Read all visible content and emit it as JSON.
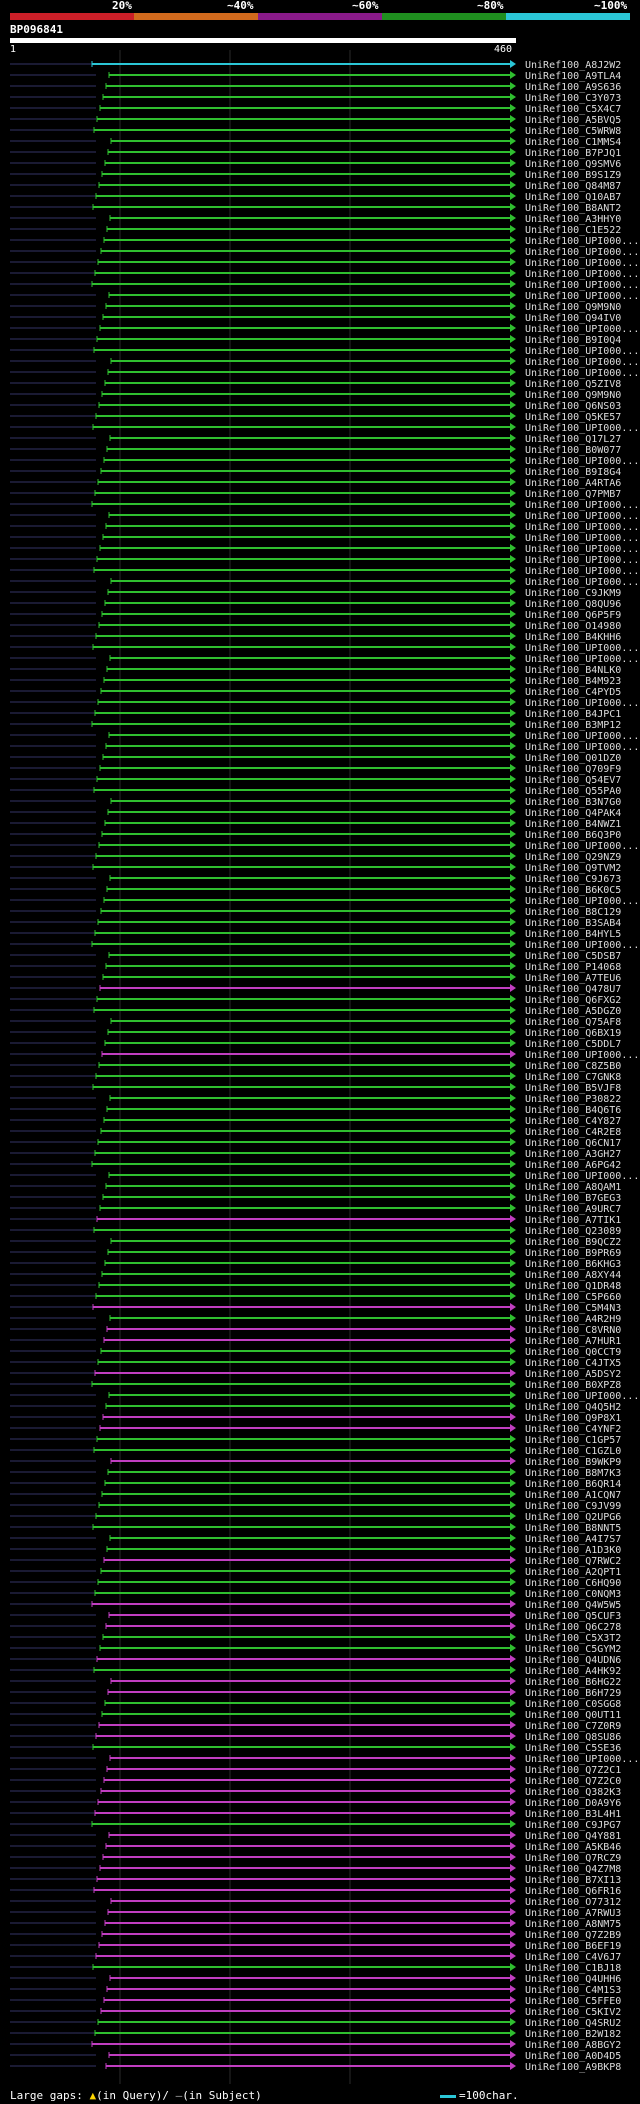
{
  "scale_ticks": [
    "20%",
    "~40%",
    "~60%",
    "~80%",
    "~100%"
  ],
  "colors": {
    "red": "#cc1f28",
    "orange": "#d26a1d",
    "purple": "#8a1a8a",
    "green": "#1f8f1f",
    "cyan": "#2bc6d6",
    "query": "#ffffff",
    "hit_green": "#2fbf2f",
    "hit_magenta": "#c13ec1",
    "hit_cyan": "#2bc6d6",
    "gap": "#333366"
  },
  "query": {
    "id": "BP096841",
    "start": "1",
    "end": "460"
  },
  "hits": [
    {
      "label": "UniRef100_A8J2W2",
      "color": "cyan"
    },
    {
      "label": "UniRef100_A9TLA4",
      "color": "green"
    },
    {
      "label": "UniRef100_A9S636",
      "color": "green"
    },
    {
      "label": "UniRef100_C3Y073",
      "color": "green"
    },
    {
      "label": "UniRef100_C5X4C7",
      "color": "green"
    },
    {
      "label": "UniRef100_A5BVQ5",
      "color": "green"
    },
    {
      "label": "UniRef100_C5WRW8",
      "color": "green"
    },
    {
      "label": "UniRef100_C1MMS4",
      "color": "green"
    },
    {
      "label": "UniRef100_B7PJQ1",
      "color": "green"
    },
    {
      "label": "UniRef100_Q9SMV6",
      "color": "green"
    },
    {
      "label": "UniRef100_B9S1Z9",
      "color": "green"
    },
    {
      "label": "UniRef100_Q84M87",
      "color": "green"
    },
    {
      "label": "UniRef100_Q10AB7",
      "color": "green"
    },
    {
      "label": "UniRef100_B8ANT2",
      "color": "green"
    },
    {
      "label": "UniRef100_A3HHY0",
      "color": "green"
    },
    {
      "label": "UniRef100_C1E522",
      "color": "green"
    },
    {
      "label": "UniRef100_UPI000...",
      "color": "green"
    },
    {
      "label": "UniRef100_UPI000...",
      "color": "green"
    },
    {
      "label": "UniRef100_UPI000...",
      "color": "green"
    },
    {
      "label": "UniRef100_UPI000...",
      "color": "green"
    },
    {
      "label": "UniRef100_UPI000...",
      "color": "green"
    },
    {
      "label": "UniRef100_UPI000...",
      "color": "green"
    },
    {
      "label": "UniRef100_Q9M9N0",
      "color": "green"
    },
    {
      "label": "UniRef100_Q94IV0",
      "color": "green"
    },
    {
      "label": "UniRef100_UPI000...",
      "color": "green"
    },
    {
      "label": "UniRef100_B9I0Q4",
      "color": "green"
    },
    {
      "label": "UniRef100_UPI000...",
      "color": "green"
    },
    {
      "label": "UniRef100_UPI000...",
      "color": "green"
    },
    {
      "label": "UniRef100_UPI000...",
      "color": "green"
    },
    {
      "label": "UniRef100_Q5ZIV8",
      "color": "green"
    },
    {
      "label": "UniRef100_Q9M9N0",
      "color": "green"
    },
    {
      "label": "UniRef100_Q6NS03",
      "color": "green"
    },
    {
      "label": "UniRef100_Q5KE57",
      "color": "green"
    },
    {
      "label": "UniRef100_UPI000...",
      "color": "green"
    },
    {
      "label": "UniRef100_Q17L27",
      "color": "green"
    },
    {
      "label": "UniRef100_B0W077",
      "color": "green"
    },
    {
      "label": "UniRef100_UPI000...",
      "color": "green"
    },
    {
      "label": "UniRef100_B9I8G4",
      "color": "green"
    },
    {
      "label": "UniRef100_A4RTA6",
      "color": "green"
    },
    {
      "label": "UniRef100_Q7PMB7",
      "color": "green"
    },
    {
      "label": "UniRef100_UPI000...",
      "color": "green"
    },
    {
      "label": "UniRef100_UPI000...",
      "color": "green"
    },
    {
      "label": "UniRef100_UPI000...",
      "color": "green"
    },
    {
      "label": "UniRef100_UPI000...",
      "color": "green"
    },
    {
      "label": "UniRef100_UPI000...",
      "color": "green"
    },
    {
      "label": "UniRef100_UPI000...",
      "color": "green"
    },
    {
      "label": "UniRef100_UPI000...",
      "color": "green"
    },
    {
      "label": "UniRef100_UPI000...",
      "color": "green"
    },
    {
      "label": "UniRef100_C9JKM9",
      "color": "green"
    },
    {
      "label": "UniRef100_Q8QU96",
      "color": "green"
    },
    {
      "label": "UniRef100_Q6P5F9",
      "color": "green"
    },
    {
      "label": "UniRef100_O14980",
      "color": "green"
    },
    {
      "label": "UniRef100_B4KHH6",
      "color": "green"
    },
    {
      "label": "UniRef100_UPI000...",
      "color": "green"
    },
    {
      "label": "UniRef100_UPI000...",
      "color": "green"
    },
    {
      "label": "UniRef100_B4NLK0",
      "color": "green"
    },
    {
      "label": "UniRef100_B4M923",
      "color": "green"
    },
    {
      "label": "UniRef100_C4PYD5",
      "color": "green"
    },
    {
      "label": "UniRef100_UPI000...",
      "color": "green"
    },
    {
      "label": "UniRef100_B4JPC1",
      "color": "green"
    },
    {
      "label": "UniRef100_B3MP12",
      "color": "green"
    },
    {
      "label": "UniRef100_UPI000...",
      "color": "green"
    },
    {
      "label": "UniRef100_UPI000...",
      "color": "green"
    },
    {
      "label": "UniRef100_Q01DZ0",
      "color": "green"
    },
    {
      "label": "UniRef100_Q709F9",
      "color": "green"
    },
    {
      "label": "UniRef100_Q54EV7",
      "color": "green"
    },
    {
      "label": "UniRef100_Q55PA0",
      "color": "green"
    },
    {
      "label": "UniRef100_B3N7G0",
      "color": "green"
    },
    {
      "label": "UniRef100_Q4PAK4",
      "color": "green"
    },
    {
      "label": "UniRef100_B4NWZ1",
      "color": "green"
    },
    {
      "label": "UniRef100_B6Q3P0",
      "color": "green"
    },
    {
      "label": "UniRef100_UPI000...",
      "color": "green"
    },
    {
      "label": "UniRef100_Q29NZ9",
      "color": "green"
    },
    {
      "label": "UniRef100_Q9TVM2",
      "color": "green"
    },
    {
      "label": "UniRef100_C9J673",
      "color": "green"
    },
    {
      "label": "UniRef100_B6K0C5",
      "color": "green"
    },
    {
      "label": "UniRef100_UPI000...",
      "color": "green"
    },
    {
      "label": "UniRef100_B8C129",
      "color": "green"
    },
    {
      "label": "UniRef100_B3SAB4",
      "color": "green"
    },
    {
      "label": "UniRef100_B4HYL5",
      "color": "green"
    },
    {
      "label": "UniRef100_UPI000...",
      "color": "green"
    },
    {
      "label": "UniRef100_C5DSB7",
      "color": "green"
    },
    {
      "label": "UniRef100_P14068",
      "color": "green"
    },
    {
      "label": "UniRef100_A7TEU6",
      "color": "green"
    },
    {
      "label": "UniRef100_Q478U7",
      "color": "magenta"
    },
    {
      "label": "UniRef100_Q6FXG2",
      "color": "green"
    },
    {
      "label": "UniRef100_A5DGZ0",
      "color": "green"
    },
    {
      "label": "UniRef100_Q75AF8",
      "color": "green"
    },
    {
      "label": "UniRef100_Q6BX19",
      "color": "green"
    },
    {
      "label": "UniRef100_C5DDL7",
      "color": "green"
    },
    {
      "label": "UniRef100_UPI000...",
      "color": "magenta"
    },
    {
      "label": "UniRef100_C8Z5B0",
      "color": "green"
    },
    {
      "label": "UniRef100_C7GNK8",
      "color": "green"
    },
    {
      "label": "UniRef100_B5VJF8",
      "color": "green"
    },
    {
      "label": "UniRef100_P30822",
      "color": "green"
    },
    {
      "label": "UniRef100_B4Q6T6",
      "color": "green"
    },
    {
      "label": "UniRef100_C4Y827",
      "color": "green"
    },
    {
      "label": "UniRef100_C4R2E8",
      "color": "green"
    },
    {
      "label": "UniRef100_Q6CN17",
      "color": "green"
    },
    {
      "label": "UniRef100_A3GH27",
      "color": "green"
    },
    {
      "label": "UniRef100_A6PG42",
      "color": "green"
    },
    {
      "label": "UniRef100_UPI000...",
      "color": "green"
    },
    {
      "label": "UniRef100_A8QAM1",
      "color": "green"
    },
    {
      "label": "UniRef100_B7GEG3",
      "color": "green"
    },
    {
      "label": "UniRef100_A9URC7",
      "color": "green"
    },
    {
      "label": "UniRef100_A7TIK1",
      "color": "magenta"
    },
    {
      "label": "UniRef100_Q23089",
      "color": "green"
    },
    {
      "label": "UniRef100_B9QCZ2",
      "color": "green"
    },
    {
      "label": "UniRef100_B9PR69",
      "color": "green"
    },
    {
      "label": "UniRef100_B6KHG3",
      "color": "green"
    },
    {
      "label": "UniRef100_A8XY44",
      "color": "green"
    },
    {
      "label": "UniRef100_Q1DR48",
      "color": "green"
    },
    {
      "label": "UniRef100_C5P660",
      "color": "green"
    },
    {
      "label": "UniRef100_C5M4N3",
      "color": "magenta"
    },
    {
      "label": "UniRef100_A4R2H9",
      "color": "green"
    },
    {
      "label": "UniRef100_C8VRN0",
      "color": "magenta"
    },
    {
      "label": "UniRef100_A7HUR1",
      "color": "magenta"
    },
    {
      "label": "UniRef100_Q0CCT9",
      "color": "green"
    },
    {
      "label": "UniRef100_C4JTX5",
      "color": "green"
    },
    {
      "label": "UniRef100_A5DSY2",
      "color": "magenta"
    },
    {
      "label": "UniRef100_B0XPZ8",
      "color": "green"
    },
    {
      "label": "UniRef100_UPI000...",
      "color": "green"
    },
    {
      "label": "UniRef100_Q4Q5H2",
      "color": "green"
    },
    {
      "label": "UniRef100_Q9P8X1",
      "color": "magenta"
    },
    {
      "label": "UniRef100_C4YNF2",
      "color": "magenta"
    },
    {
      "label": "UniRef100_C1GP57",
      "color": "green"
    },
    {
      "label": "UniRef100_C1GZL0",
      "color": "green"
    },
    {
      "label": "UniRef100_B9WKP9",
      "color": "magenta"
    },
    {
      "label": "UniRef100_B8M7K3",
      "color": "green"
    },
    {
      "label": "UniRef100_B6QR14",
      "color": "green"
    },
    {
      "label": "UniRef100_A1CQN7",
      "color": "green"
    },
    {
      "label": "UniRef100_C9JV99",
      "color": "green"
    },
    {
      "label": "UniRef100_Q2UPG6",
      "color": "green"
    },
    {
      "label": "UniRef100_B8NNT5",
      "color": "green"
    },
    {
      "label": "UniRef100_A4I7S7",
      "color": "green"
    },
    {
      "label": "UniRef100_A1D3K0",
      "color": "green"
    },
    {
      "label": "UniRef100_Q7RWC2",
      "color": "magenta"
    },
    {
      "label": "UniRef100_A2QPT1",
      "color": "green"
    },
    {
      "label": "UniRef100_C6HQ90",
      "color": "green"
    },
    {
      "label": "UniRef100_C0NQM3",
      "color": "green"
    },
    {
      "label": "UniRef100_Q4W5W5",
      "color": "magenta"
    },
    {
      "label": "UniRef100_Q5CUF3",
      "color": "magenta"
    },
    {
      "label": "UniRef100_Q6C278",
      "color": "magenta"
    },
    {
      "label": "UniRef100_C5X3T2",
      "color": "green"
    },
    {
      "label": "UniRef100_C5GYM2",
      "color": "green"
    },
    {
      "label": "UniRef100_Q4UDN6",
      "color": "magenta"
    },
    {
      "label": "UniRef100_A4HK92",
      "color": "green"
    },
    {
      "label": "UniRef100_B6HG22",
      "color": "magenta"
    },
    {
      "label": "UniRef100_B6H729",
      "color": "magenta"
    },
    {
      "label": "UniRef100_C0SGG8",
      "color": "green"
    },
    {
      "label": "UniRef100_Q0UT11",
      "color": "green"
    },
    {
      "label": "UniRef100_C7Z0R9",
      "color": "magenta"
    },
    {
      "label": "UniRef100_Q8SU86",
      "color": "magenta"
    },
    {
      "label": "UniRef100_C5SE36",
      "color": "green"
    },
    {
      "label": "UniRef100_UPI000...",
      "color": "magenta"
    },
    {
      "label": "UniRef100_Q7Z2C1",
      "color": "magenta"
    },
    {
      "label": "UniRef100_Q7Z2C0",
      "color": "magenta"
    },
    {
      "label": "UniRef100_Q382K3",
      "color": "magenta"
    },
    {
      "label": "UniRef100_D0A9Y6",
      "color": "magenta"
    },
    {
      "label": "UniRef100_B3L4H1",
      "color": "magenta"
    },
    {
      "label": "UniRef100_C9JPG7",
      "color": "green"
    },
    {
      "label": "UniRef100_Q4Y881",
      "color": "magenta"
    },
    {
      "label": "UniRef100_A5KB46",
      "color": "magenta"
    },
    {
      "label": "UniRef100_Q7RCZ9",
      "color": "magenta"
    },
    {
      "label": "UniRef100_Q4Z7M8",
      "color": "magenta"
    },
    {
      "label": "UniRef100_B7XI13",
      "color": "magenta"
    },
    {
      "label": "UniRef100_Q6FR16",
      "color": "magenta"
    },
    {
      "label": "UniRef100_O77312",
      "color": "magenta"
    },
    {
      "label": "UniRef100_A7RWU3",
      "color": "magenta"
    },
    {
      "label": "UniRef100_A8NM75",
      "color": "magenta"
    },
    {
      "label": "UniRef100_Q7Z2B9",
      "color": "magenta"
    },
    {
      "label": "UniRef100_B6EF19",
      "color": "magenta"
    },
    {
      "label": "UniRef100_C4V6J7",
      "color": "magenta"
    },
    {
      "label": "UniRef100_C1BJ18",
      "color": "green"
    },
    {
      "label": "UniRef100_Q4UHH6",
      "color": "magenta"
    },
    {
      "label": "UniRef100_C4M1S3",
      "color": "magenta"
    },
    {
      "label": "UniRef100_C5FFE0",
      "color": "magenta"
    },
    {
      "label": "UniRef100_C5KIV2",
      "color": "magenta"
    },
    {
      "label": "UniRef100_Q4SRU2",
      "color": "green"
    },
    {
      "label": "UniRef100_B2W182",
      "color": "green"
    },
    {
      "label": "UniRef100_A8BGY2",
      "color": "magenta"
    },
    {
      "label": "UniRef100_A0D4D5",
      "color": "magenta"
    },
    {
      "label": "UniRef100_A9BKP8",
      "color": "magenta"
    }
  ],
  "footer": {
    "large_gaps": "Large gaps:",
    "in_query": "(in Query)/",
    "in_subject": "(in Subject)"
  },
  "legend": {
    "label": "=100char."
  }
}
